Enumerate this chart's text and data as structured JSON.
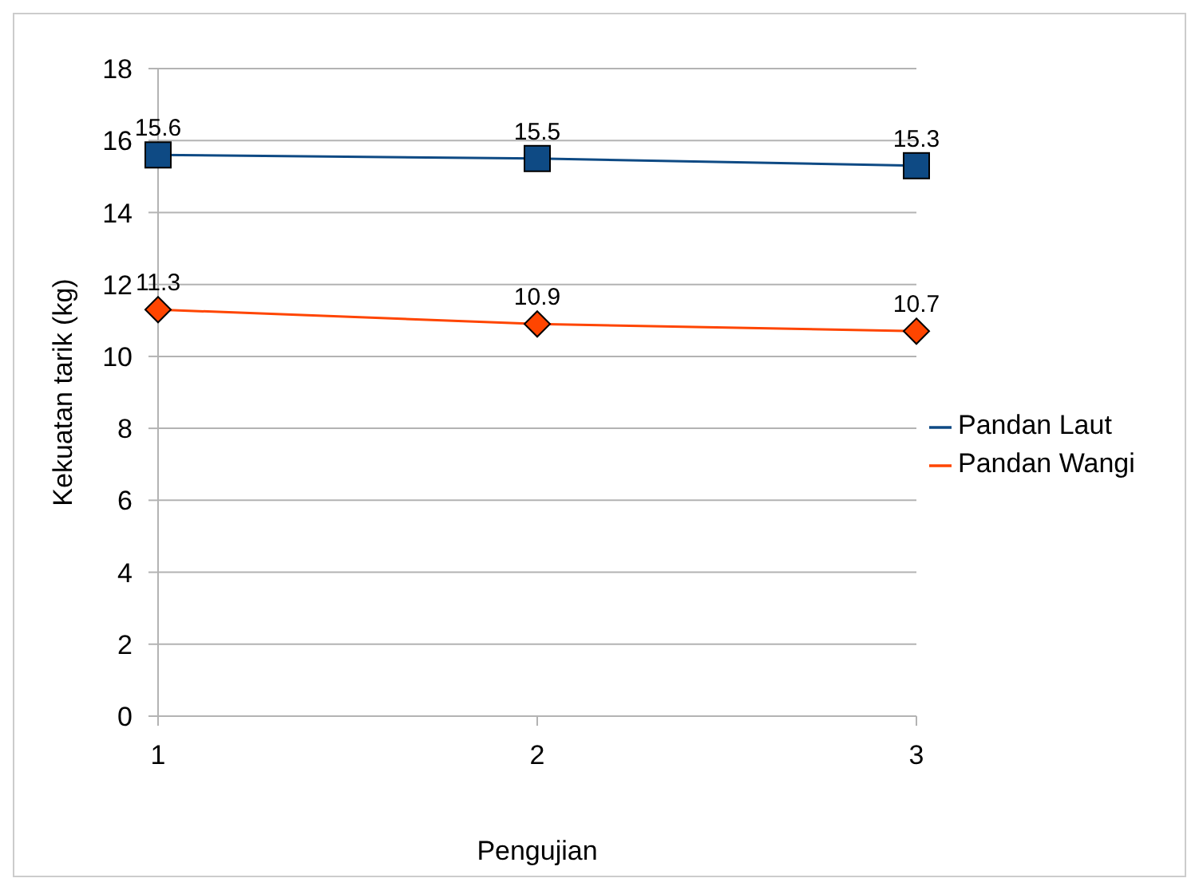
{
  "chart_data": {
    "type": "line",
    "xlabel": "Pengujian",
    "ylabel": "Kekuatan tarik (kg)",
    "x": [
      1,
      2,
      3
    ],
    "xlim": [
      1,
      3
    ],
    "xticks": [
      1,
      2,
      3
    ],
    "ylim": [
      0,
      18
    ],
    "yticks": [
      0,
      2,
      4,
      6,
      8,
      10,
      12,
      14,
      16,
      18
    ],
    "series": [
      {
        "name": "Pandan Laut",
        "color": "#0e4a84",
        "marker": "square",
        "values": [
          15.6,
          15.5,
          15.3
        ]
      },
      {
        "name": "Pandan Wangi",
        "color": "#ff4500",
        "marker": "diamond",
        "values": [
          11.3,
          10.9,
          10.7
        ]
      }
    ],
    "grid": "y",
    "legend": "right",
    "data_labels": true
  }
}
